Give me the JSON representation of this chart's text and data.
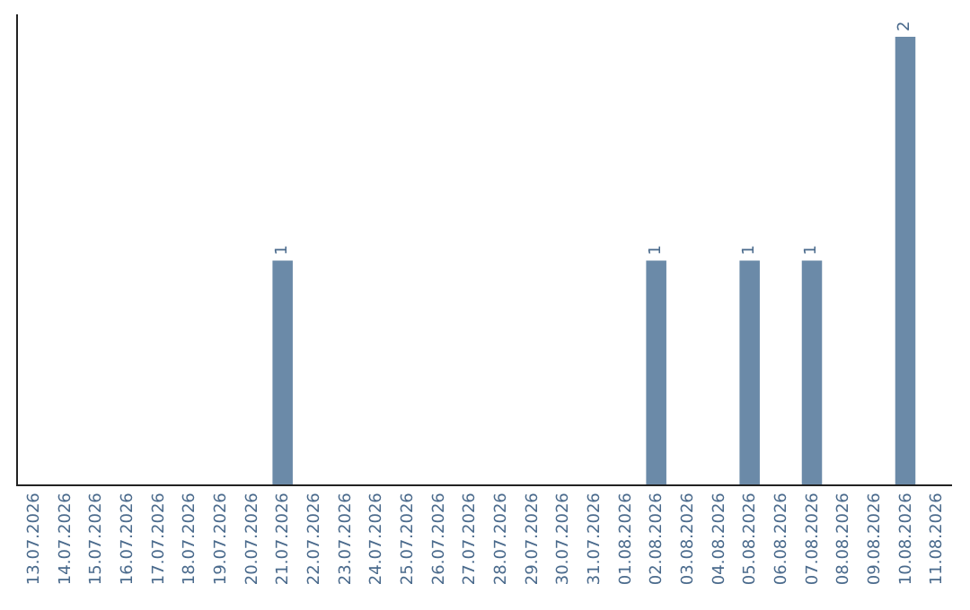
{
  "chart_data": {
    "type": "bar",
    "categories": [
      "13.07.2026",
      "14.07.2026",
      "15.07.2026",
      "16.07.2026",
      "17.07.2026",
      "18.07.2026",
      "19.07.2026",
      "20.07.2026",
      "21.07.2026",
      "22.07.2026",
      "23.07.2026",
      "24.07.2026",
      "25.07.2026",
      "26.07.2026",
      "27.07.2026",
      "28.07.2026",
      "29.07.2026",
      "30.07.2026",
      "31.07.2026",
      "01.08.2026",
      "02.08.2026",
      "03.08.2026",
      "04.08.2026",
      "05.08.2026",
      "06.08.2026",
      "07.08.2026",
      "08.08.2026",
      "09.08.2026",
      "10.08.2026",
      "11.08.2026"
    ],
    "values": [
      0,
      0,
      0,
      0,
      0,
      0,
      0,
      0,
      1,
      0,
      0,
      0,
      0,
      0,
      0,
      0,
      0,
      0,
      0,
      0,
      1,
      0,
      0,
      1,
      0,
      1,
      0,
      0,
      2,
      0
    ],
    "value_labels": [
      null,
      null,
      null,
      null,
      null,
      null,
      null,
      null,
      "1",
      null,
      null,
      null,
      null,
      null,
      null,
      null,
      null,
      null,
      null,
      null,
      "1",
      null,
      null,
      "1",
      null,
      "1",
      null,
      null,
      "2",
      null
    ],
    "color": "#6b8aa8"
  }
}
